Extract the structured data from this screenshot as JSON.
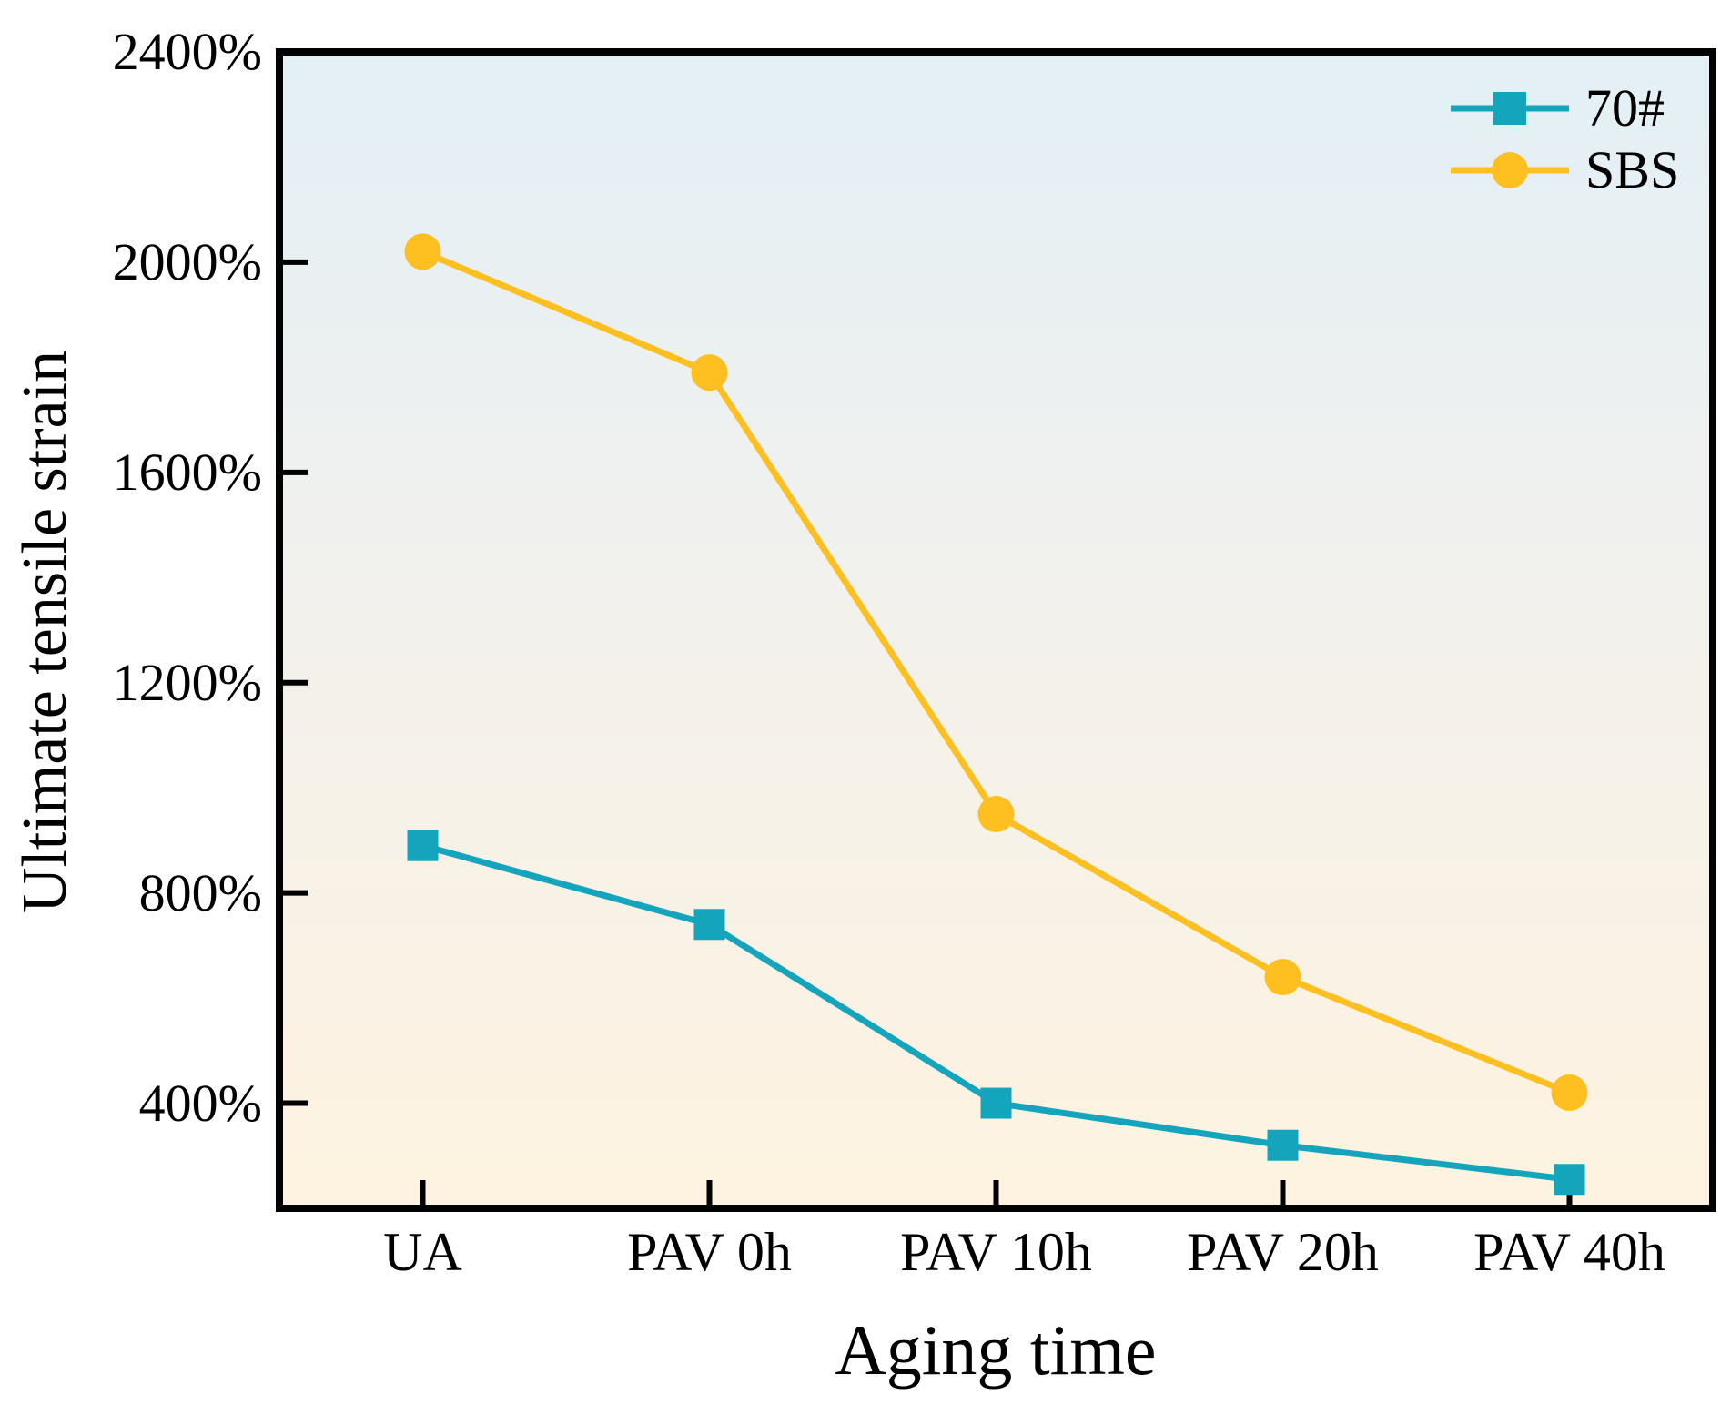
{
  "chart_data": {
    "type": "line",
    "title": "",
    "xlabel": "Aging time",
    "ylabel": "Ultimate tensile strain",
    "categories": [
      "UA",
      "PAV 0h",
      "PAV 10h",
      "PAV 20h",
      "PAV 40h"
    ],
    "series": [
      {
        "name": "70#",
        "marker": "square",
        "color": "#14A5BC",
        "values": [
          890,
          740,
          400,
          320,
          255
        ]
      },
      {
        "name": "SBS",
        "marker": "circle",
        "color": "#FEC021",
        "values": [
          2020,
          1790,
          950,
          640,
          420
        ]
      }
    ],
    "ylim": [
      200,
      2400
    ],
    "yticks": [
      400,
      800,
      1200,
      1600,
      2000,
      2400
    ],
    "ytick_labels": [
      "400%",
      "800%",
      "1200%",
      "1600%",
      "2000%",
      "2400%"
    ],
    "unit": "percent",
    "grid": false,
    "legend_position": "top-right-inside",
    "axis_color": "#000000",
    "plot_background": {
      "top": "#E3F0F6",
      "mid": "#F3F1EC",
      "bottom": "#FEF3E0"
    }
  }
}
